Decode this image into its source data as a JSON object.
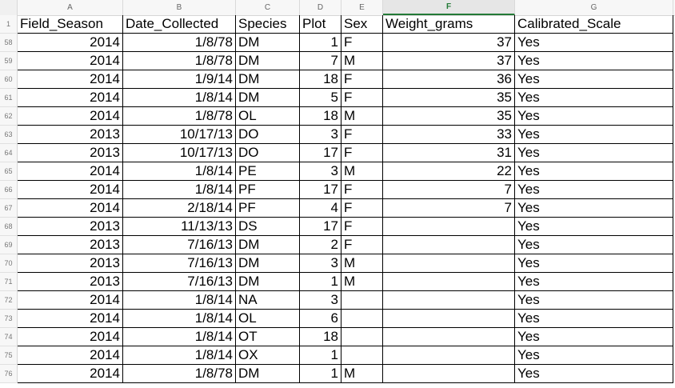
{
  "columns": [
    {
      "letter": "A",
      "selected": false
    },
    {
      "letter": "B",
      "selected": false
    },
    {
      "letter": "C",
      "selected": false
    },
    {
      "letter": "D",
      "selected": false
    },
    {
      "letter": "E",
      "selected": false
    },
    {
      "letter": "F",
      "selected": true
    },
    {
      "letter": "G",
      "selected": false
    }
  ],
  "header_row": {
    "number": "1",
    "cells": [
      "Field_Season",
      "Date_Collected",
      "Species",
      "Plot",
      "Sex",
      "Weight_grams",
      "Calibrated_Scale"
    ]
  },
  "rows": [
    {
      "number": "58",
      "cells": [
        "2014",
        "1/8/78",
        "DM",
        "1",
        "F",
        "37",
        "Yes"
      ]
    },
    {
      "number": "59",
      "cells": [
        "2014",
        "1/8/78",
        "DM",
        "7",
        "M",
        "37",
        "Yes"
      ]
    },
    {
      "number": "60",
      "cells": [
        "2014",
        "1/9/14",
        "DM",
        "18",
        "F",
        "36",
        "Yes"
      ]
    },
    {
      "number": "61",
      "cells": [
        "2014",
        "1/8/14",
        "DM",
        "5",
        "F",
        "35",
        "Yes"
      ]
    },
    {
      "number": "62",
      "cells": [
        "2014",
        "1/8/78",
        "OL",
        "18",
        "M",
        "35",
        "Yes"
      ]
    },
    {
      "number": "63",
      "cells": [
        "2013",
        "10/17/13",
        "DO",
        "3",
        "F",
        "33",
        "Yes"
      ]
    },
    {
      "number": "64",
      "cells": [
        "2013",
        "10/17/13",
        "DO",
        "17",
        "F",
        "31",
        "Yes"
      ]
    },
    {
      "number": "65",
      "cells": [
        "2014",
        "1/8/14",
        "PE",
        "3",
        "M",
        "22",
        "Yes"
      ]
    },
    {
      "number": "66",
      "cells": [
        "2014",
        "1/8/14",
        "PF",
        "17",
        "F",
        "7",
        "Yes"
      ]
    },
    {
      "number": "67",
      "cells": [
        "2014",
        "2/18/14",
        "PF",
        "4",
        "F",
        "7",
        "Yes"
      ]
    },
    {
      "number": "68",
      "cells": [
        "2013",
        "11/13/13",
        "DS",
        "17",
        "F",
        "",
        "Yes"
      ]
    },
    {
      "number": "69",
      "cells": [
        "2013",
        "7/16/13",
        "DM",
        "2",
        "F",
        "",
        "Yes"
      ]
    },
    {
      "number": "70",
      "cells": [
        "2013",
        "7/16/13",
        "DM",
        "3",
        "M",
        "",
        "Yes"
      ]
    },
    {
      "number": "71",
      "cells": [
        "2013",
        "7/16/13",
        "DM",
        "1",
        "M",
        "",
        "Yes"
      ]
    },
    {
      "number": "72",
      "cells": [
        "2014",
        "1/8/14",
        "NA",
        "3",
        "",
        "",
        "Yes"
      ]
    },
    {
      "number": "73",
      "cells": [
        "2014",
        "1/8/14",
        "OL",
        "6",
        "",
        "",
        "Yes"
      ]
    },
    {
      "number": "74",
      "cells": [
        "2014",
        "1/8/14",
        "OT",
        "18",
        "",
        "",
        "Yes"
      ]
    },
    {
      "number": "75",
      "cells": [
        "2014",
        "1/8/14",
        "OX",
        "1",
        "",
        "",
        "Yes"
      ]
    },
    {
      "number": "76",
      "cells": [
        "2014",
        "1/8/78",
        "DM",
        "1",
        "M",
        "",
        "Yes"
      ]
    }
  ],
  "colors": {
    "selected_column_accent": "#237a36",
    "header_background": "#f7f7f7",
    "cell_border": "#000000"
  }
}
